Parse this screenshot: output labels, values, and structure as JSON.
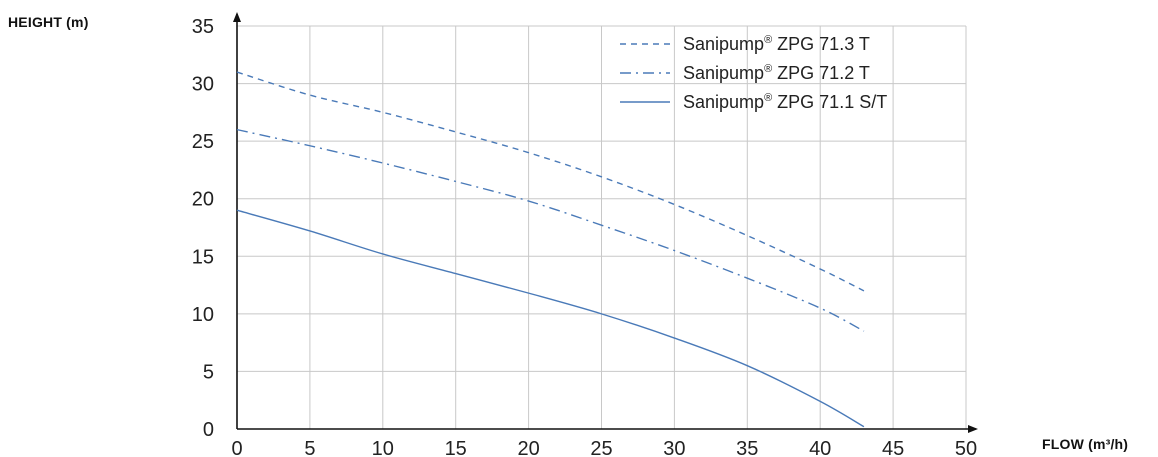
{
  "chart_data": {
    "type": "line",
    "ylabel": "HEIGHT (m)",
    "xlabel": "FLOW (m³/h)",
    "xlim": [
      0,
      50
    ],
    "ylim": [
      0,
      35
    ],
    "x_ticks": [
      "0",
      "5",
      "10",
      "15",
      "20",
      "25",
      "30",
      "35",
      "40",
      "45",
      "50"
    ],
    "y_ticks": [
      "0",
      "5",
      "10",
      "15",
      "20",
      "25",
      "30",
      "35"
    ],
    "grid": true,
    "legend_position": "top-right",
    "series": [
      {
        "name": "Sanipump® ZPG 71.3 T",
        "name_main": "Sanipump",
        "name_reg": "®",
        "name_rest": " ZPG 71.3 T",
        "style": "dashed",
        "color": "#4a7ab8",
        "x": [
          0,
          5,
          10,
          15,
          20,
          25,
          30,
          35,
          40,
          43
        ],
        "y": [
          31,
          29,
          27.5,
          25.8,
          24,
          21.9,
          19.5,
          16.8,
          13.9,
          12
        ]
      },
      {
        "name": "Sanipump® ZPG 71.2 T",
        "name_main": "Sanipump",
        "name_reg": "®",
        "name_rest": " ZPG 71.2 T",
        "style": "dashdot",
        "color": "#4a7ab8",
        "x": [
          0,
          5,
          10,
          15,
          20,
          25,
          30,
          35,
          40,
          43
        ],
        "y": [
          26,
          24.6,
          23.1,
          21.5,
          19.8,
          17.7,
          15.5,
          13.1,
          10.5,
          8.5
        ]
      },
      {
        "name": "Sanipump® ZPG 71.1 S/T",
        "name_main": "Sanipump",
        "name_reg": "®",
        "name_rest": " ZPG 71.1 S/T",
        "style": "solid",
        "color": "#4a7ab8",
        "x": [
          0,
          5,
          10,
          15,
          20,
          25,
          30,
          35,
          40,
          43
        ],
        "y": [
          19,
          17.2,
          15.2,
          13.5,
          11.8,
          10,
          7.9,
          5.5,
          2.4,
          0.2
        ]
      }
    ]
  }
}
